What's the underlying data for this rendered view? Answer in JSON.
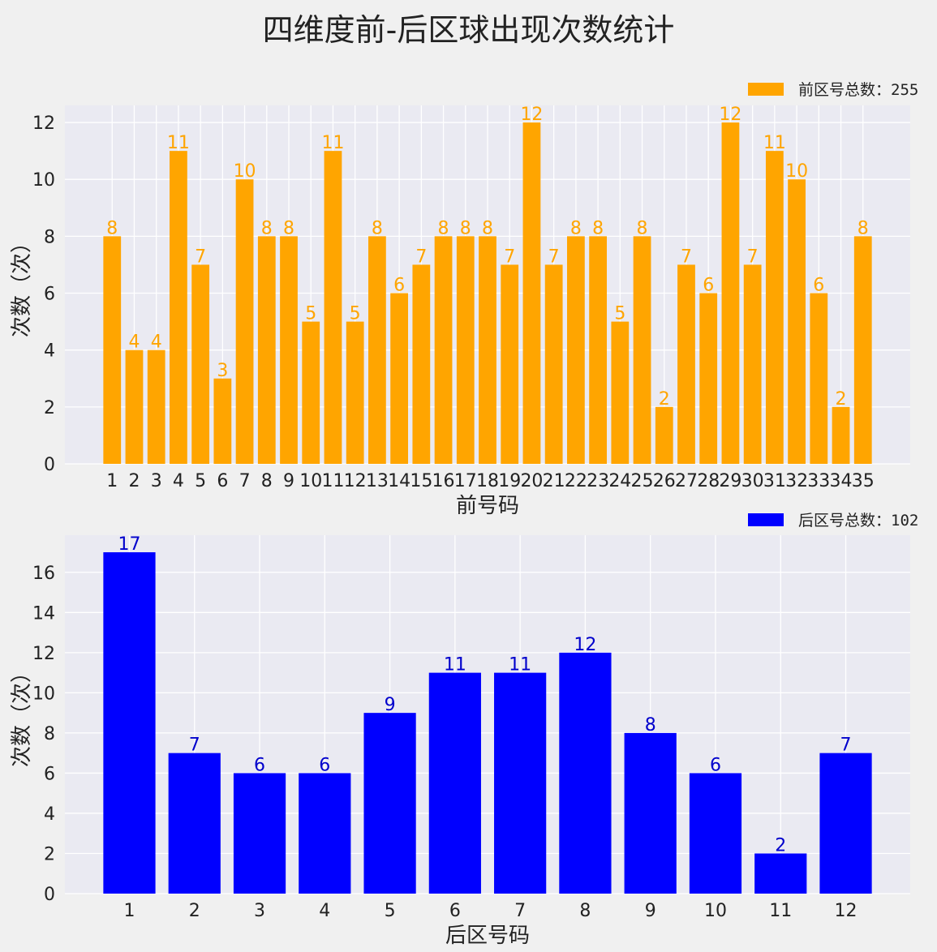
{
  "title": "四维度前-后区球出现次数统计",
  "chart_data": [
    {
      "type": "bar",
      "title": "",
      "legend": "前区号总数：255",
      "legend_position": "top-right",
      "color": "#ffa500",
      "xlabel": "前号码",
      "ylabel": "次数（次）",
      "ylim": [
        0,
        12.6
      ],
      "yticks": [
        0,
        2,
        4,
        6,
        8,
        10,
        12
      ],
      "grid": true,
      "categories": [
        "1",
        "2",
        "3",
        "4",
        "5",
        "6",
        "7",
        "8",
        "9",
        "10",
        "11",
        "12",
        "13",
        "14",
        "15",
        "16",
        "17",
        "18",
        "19",
        "20",
        "21",
        "22",
        "23",
        "24",
        "25",
        "26",
        "27",
        "28",
        "29",
        "30",
        "31",
        "32",
        "33",
        "34",
        "35"
      ],
      "values": [
        8,
        4,
        4,
        11,
        7,
        3,
        10,
        8,
        8,
        5,
        11,
        5,
        8,
        6,
        7,
        8,
        8,
        8,
        7,
        12,
        7,
        8,
        8,
        5,
        8,
        2,
        7,
        6,
        12,
        7,
        11,
        10,
        6,
        2,
        8
      ]
    },
    {
      "type": "bar",
      "title": "",
      "legend": "后区号总数：102",
      "legend_position": "top-right",
      "color": "#0000ff",
      "xlabel": "后区号码",
      "ylabel": "次数（次）",
      "ylim": [
        0,
        17.85
      ],
      "yticks": [
        0,
        2,
        4,
        6,
        8,
        10,
        12,
        14,
        16
      ],
      "grid": true,
      "categories": [
        "1",
        "2",
        "3",
        "4",
        "5",
        "6",
        "7",
        "8",
        "9",
        "10",
        "11",
        "12"
      ],
      "values": [
        17,
        7,
        6,
        6,
        9,
        11,
        11,
        12,
        8,
        6,
        2,
        7
      ]
    }
  ]
}
